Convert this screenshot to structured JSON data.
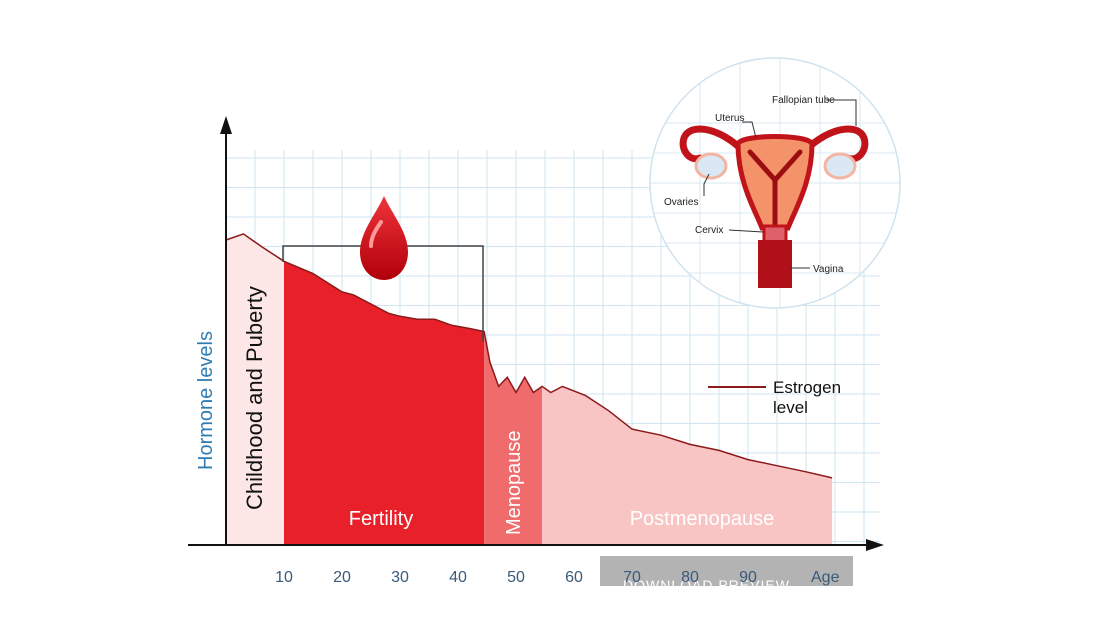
{
  "chart_data": {
    "type": "area",
    "title": "",
    "xlabel": "Age",
    "ylabel": "Hormone levels",
    "x_ticks": [
      10,
      20,
      30,
      40,
      50,
      60,
      70,
      80,
      90
    ],
    "xlim": [
      0,
      110
    ],
    "ylim": [
      0,
      1
    ],
    "grid": true,
    "series": [
      {
        "name": "Estrogen level",
        "color": "#8b1a1a",
        "x": [
          0,
          3,
          6,
          10,
          15,
          20,
          22,
          25,
          28,
          30,
          33,
          36,
          39,
          42,
          44.5,
          45.5,
          47,
          48.5,
          50,
          51.5,
          53,
          54.5,
          56,
          58,
          62,
          66,
          70,
          75,
          80,
          85,
          90,
          95,
          100,
          104.5
        ],
        "y": [
          1.0,
          1.02,
          0.98,
          0.93,
          0.89,
          0.83,
          0.82,
          0.79,
          0.76,
          0.75,
          0.74,
          0.74,
          0.72,
          0.71,
          0.7,
          0.6,
          0.52,
          0.55,
          0.5,
          0.55,
          0.5,
          0.52,
          0.5,
          0.52,
          0.49,
          0.44,
          0.38,
          0.36,
          0.33,
          0.31,
          0.28,
          0.26,
          0.24,
          0.22
        ]
      }
    ],
    "phases": [
      {
        "label": "Childhood and Puberty",
        "start": 0,
        "end": 10,
        "color": "#ffffff"
      },
      {
        "label": "Fertility",
        "start": 10,
        "end": 44.5,
        "color": "#e8202a"
      },
      {
        "label": "Menopause",
        "start": 44.5,
        "end": 54.5,
        "color": "#f06b6b"
      },
      {
        "label": "Postmenopause",
        "start": 54.5,
        "end": 104.5,
        "color": "#f8c4c4"
      }
    ],
    "legend": {
      "label_line1": "Estrogen",
      "label_line2": "level",
      "placement": "right"
    },
    "inset": {
      "labels": {
        "uterus": "Uterus",
        "fallopian": "Fallopian tube",
        "ovaries": "Ovaries",
        "cervix": "Cervix",
        "vagina": "Vagina"
      }
    },
    "watermark": "DOWNLOAD PREVIEW"
  }
}
